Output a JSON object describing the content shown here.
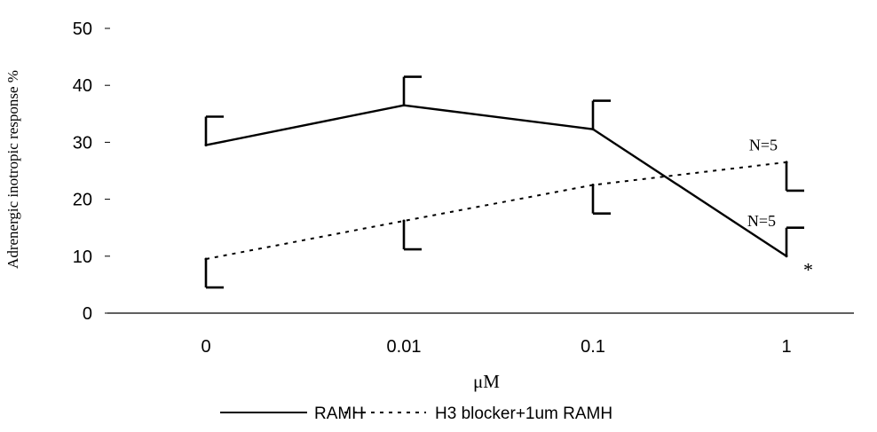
{
  "chart_data": {
    "type": "line",
    "xlabel": "μM",
    "ylabel": "Adrenergic inotropic response %",
    "categories": [
      "0",
      "0.01",
      "0.1",
      "1"
    ],
    "ylim": [
      0,
      50
    ],
    "yticks": [
      0,
      10,
      20,
      30,
      40,
      50
    ],
    "ytick_labels": [
      "0",
      "10",
      "20",
      "30",
      "40",
      "50"
    ],
    "grid": false,
    "legend_position": "bottom",
    "series": [
      {
        "name": "RAMH",
        "style": "solid",
        "values": [
          29.5,
          36.5,
          32.3,
          10.0
        ],
        "errors": [
          5.0,
          5.0,
          5.0,
          5.0
        ],
        "error_direction": "up"
      },
      {
        "name": "H3 blocker+1um RAMH",
        "style": "dotted",
        "values": [
          9.5,
          16.2,
          22.5,
          26.5
        ],
        "errors": [
          5.0,
          5.0,
          5.0,
          5.0
        ],
        "error_direction": "down"
      }
    ],
    "annotations": [
      {
        "text": "N=5",
        "series": "H3 blocker+1um RAMH",
        "category": "1",
        "value": 29.5
      },
      {
        "text": "N=5",
        "series": "RAMH",
        "category": "1",
        "value": 16.2
      },
      {
        "text": "*",
        "series": "RAMH",
        "category": "1",
        "value": 8.0
      }
    ]
  },
  "colors": {
    "line": "#000000",
    "background": "#ffffff"
  }
}
